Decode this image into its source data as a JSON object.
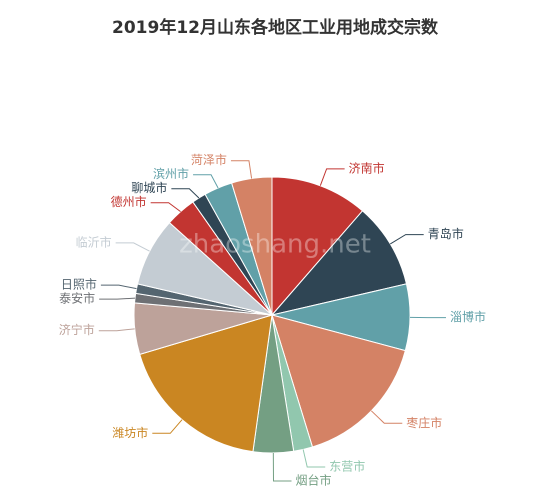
{
  "chart_data": {
    "type": "pie",
    "title": "2019年12月山东各地区工业用地成交宗数",
    "watermark": "zhaoshang.net",
    "categories": [
      "济南市",
      "青岛市",
      "淄博市",
      "枣庄市",
      "东营市",
      "烟台市",
      "潍坊市",
      "济宁市",
      "泰安市",
      "日照市",
      "临沂市",
      "德州市",
      "聊城市",
      "滨州市",
      "菏泽市"
    ],
    "values": [
      41,
      36,
      28,
      58,
      8,
      17,
      65.5,
      21.6,
      4,
      4,
      29,
      13,
      6,
      12,
      17
    ],
    "colors": [
      "#c23531",
      "#2f4554",
      "#61a0a8",
      "#d48265",
      "#91c7ae",
      "#749f83",
      "#ca8622",
      "#bda29a",
      "#6e7074",
      "#546570",
      "#c4ccd3",
      "#c23531",
      "#2f4554",
      "#61a0a8",
      "#d48265"
    ]
  }
}
